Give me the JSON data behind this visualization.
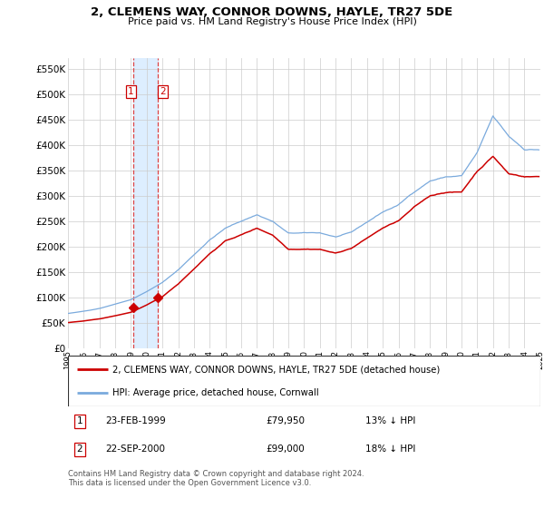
{
  "title": "2, CLEMENS WAY, CONNOR DOWNS, HAYLE, TR27 5DE",
  "subtitle": "Price paid vs. HM Land Registry's House Price Index (HPI)",
  "legend_entry1": "2, CLEMENS WAY, CONNOR DOWNS, HAYLE, TR27 5DE (detached house)",
  "legend_entry2": "HPI: Average price, detached house, Cornwall",
  "transaction1_label": "1",
  "transaction1_date": "23-FEB-1999",
  "transaction1_price": "£79,950",
  "transaction1_hpi": "13% ↓ HPI",
  "transaction2_label": "2",
  "transaction2_date": "22-SEP-2000",
  "transaction2_price": "£99,000",
  "transaction2_hpi": "18% ↓ HPI",
  "footer": "Contains HM Land Registry data © Crown copyright and database right 2024.\nThis data is licensed under the Open Government Licence v3.0.",
  "line_color_red": "#cc0000",
  "line_color_blue": "#7aaadd",
  "marker_color_red": "#cc0000",
  "shade_color": "#ddeeff",
  "ylim_min": 0,
  "ylim_max": 570000,
  "yticks": [
    0,
    50000,
    100000,
    150000,
    200000,
    250000,
    300000,
    350000,
    400000,
    450000,
    500000,
    550000
  ],
  "ytick_labels": [
    "£0",
    "£50K",
    "£100K",
    "£150K",
    "£200K",
    "£250K",
    "£300K",
    "£350K",
    "£400K",
    "£450K",
    "£500K",
    "£550K"
  ],
  "transaction1_x": 1999.12,
  "transaction1_y": 79950,
  "transaction2_x": 2000.72,
  "transaction2_y": 99000,
  "vline1_x": 1999.12,
  "vline2_x": 2000.72,
  "xmin": 1995,
  "xmax": 2025
}
